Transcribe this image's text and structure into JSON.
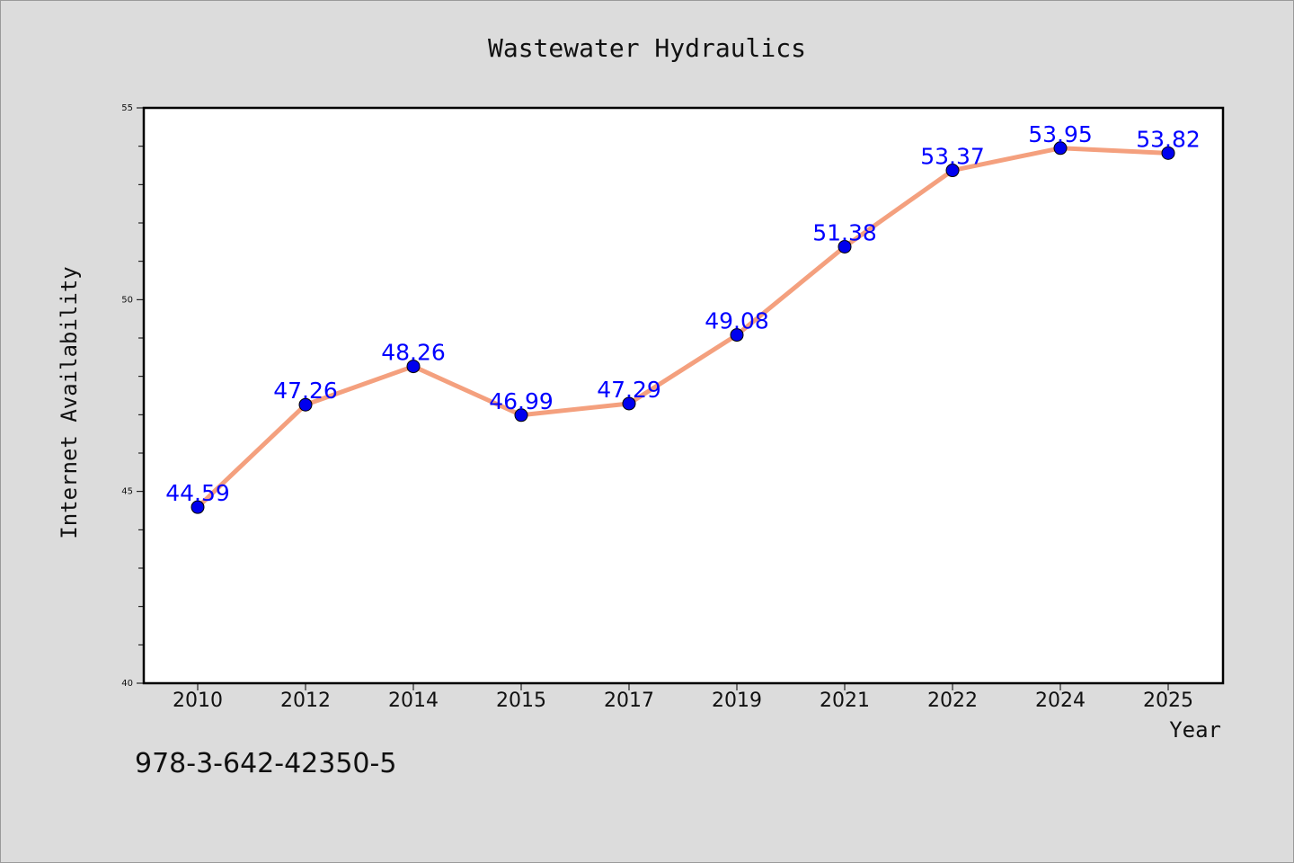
{
  "chart_data": {
    "type": "line",
    "title": "Wastewater Hydraulics",
    "xlabel": "Year",
    "ylabel": "Internet Availability",
    "categories": [
      "2010",
      "2012",
      "2014",
      "2015",
      "2017",
      "2019",
      "2021",
      "2022",
      "2024",
      "2025"
    ],
    "values": [
      44.59,
      47.26,
      48.26,
      46.99,
      47.29,
      49.08,
      51.38,
      53.37,
      53.95,
      53.82
    ],
    "data_labels": [
      "44.59",
      "47.26",
      "48.26",
      "46.99",
      "47.29",
      "49.08",
      "51.38",
      "53.37",
      "53.95",
      "53.82"
    ],
    "ylim": [
      40,
      55
    ],
    "y_ticks": [
      "40",
      "45",
      "50",
      "55"
    ],
    "grid": false,
    "line_color": "#f4a07e",
    "marker_color": "#0000ee",
    "label_color": "#0000ff"
  },
  "footer": {
    "isbn": "978-3-642-42350-5"
  }
}
